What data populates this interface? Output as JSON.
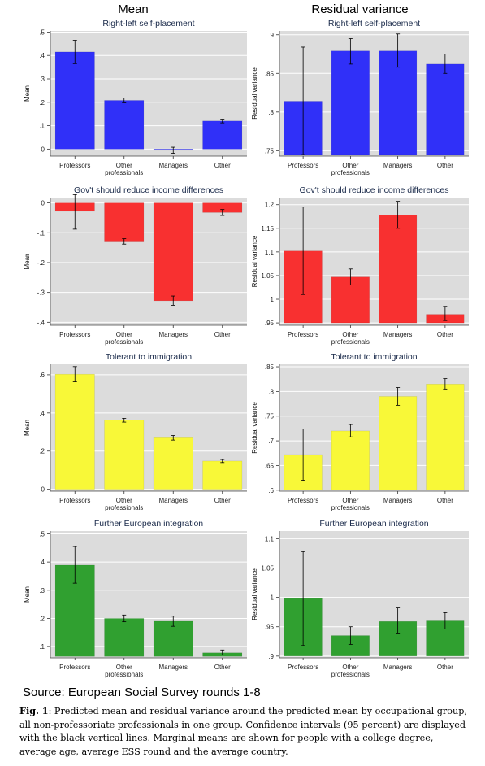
{
  "column_titles": [
    "Mean",
    "Residual variance"
  ],
  "source": "Source: European Social Survey rounds 1-8",
  "caption": {
    "label": "Fig. 1",
    "text": ": Predicted mean and residual variance around the predicted mean by occupational group, all non-professoriate professionals in one group. Confidence intervals (95 percent) are displayed with the black vertical lines. Marginal means are shown for people with a college degree, average age, average ESS round and the average country."
  },
  "colors": {
    "blue": "#3030f8",
    "red": "#f83030",
    "yellow": "#f8f838",
    "green": "#30a030",
    "panel_bg": "#dcdcdc",
    "grid": "#ffffff"
  },
  "chart_data": [
    {
      "type": "bar",
      "title": "Right-left self-placement",
      "ylabel": "Mean",
      "color": "blue",
      "categories": [
        "Professors",
        "Other professionals",
        "Managers",
        "Other"
      ],
      "values": [
        0.415,
        0.208,
        -0.005,
        0.12
      ],
      "ci": [
        [
          0.365,
          0.465
        ],
        [
          0.198,
          0.218
        ],
        [
          -0.018,
          0.008
        ],
        [
          0.112,
          0.128
        ]
      ],
      "ylim": [
        -0.03,
        0.505
      ],
      "ticks": [
        0,
        0.1,
        0.2,
        0.3,
        0.4,
        0.5
      ],
      "tick_labels": [
        "0",
        ".1",
        ".2",
        ".3",
        ".4",
        ".5"
      ]
    },
    {
      "type": "bar",
      "title": "Right-left self-placement",
      "ylabel": "Residual variance",
      "color": "blue",
      "categories": [
        "Professors",
        "Other professionals",
        "Managers",
        "Other"
      ],
      "values": [
        0.814,
        0.879,
        0.879,
        0.862
      ],
      "ci": [
        [
          0.745,
          0.884
        ],
        [
          0.862,
          0.895
        ],
        [
          0.858,
          0.901
        ],
        [
          0.85,
          0.875
        ]
      ],
      "ylim": [
        0.743,
        0.905
      ],
      "baseline": 0.745,
      "ticks": [
        0.75,
        0.8,
        0.85,
        0.9
      ],
      "tick_labels": [
        ".75",
        ".8",
        ".85",
        ".9"
      ]
    },
    {
      "type": "bar",
      "title": "Gov't should reduce income differences",
      "ylabel": "Mean",
      "color": "red",
      "categories": [
        "Professors",
        "Other professionals",
        "Managers",
        "Other"
      ],
      "values": [
        -0.028,
        -0.128,
        -0.328,
        -0.032
      ],
      "ci": [
        [
          -0.088,
          0.028
        ],
        [
          -0.138,
          -0.12
        ],
        [
          -0.343,
          -0.312
        ],
        [
          -0.042,
          -0.022
        ]
      ],
      "ylim": [
        -0.41,
        0.018
      ],
      "ticks": [
        0,
        -0.1,
        -0.2,
        -0.3,
        -0.4
      ],
      "tick_labels": [
        "0",
        "-.1",
        "-.2",
        "-.3",
        "-.4"
      ]
    },
    {
      "type": "bar",
      "title": "Gov't should reduce income differences",
      "ylabel": "Residual variance",
      "color": "red",
      "categories": [
        "Professors",
        "Other professionals",
        "Managers",
        "Other"
      ],
      "values": [
        1.102,
        1.047,
        1.178,
        0.968
      ],
      "ci": [
        [
          1.01,
          1.195
        ],
        [
          1.03,
          1.064
        ],
        [
          1.15,
          1.207
        ],
        [
          0.955,
          0.985
        ]
      ],
      "ylim": [
        0.945,
        1.215
      ],
      "baseline": 0.95,
      "ticks": [
        0.95,
        1.0,
        1.05,
        1.1,
        1.15,
        1.2
      ],
      "tick_labels": [
        ".95",
        "1",
        "1.05",
        "1.1",
        "1.15",
        "1.2"
      ]
    },
    {
      "type": "bar",
      "title": "Tolerant to immigration",
      "ylabel": "Mean",
      "color": "yellow",
      "categories": [
        "Professors",
        "Other professionals",
        "Managers",
        "Other"
      ],
      "values": [
        0.603,
        0.362,
        0.27,
        0.148
      ],
      "ci": [
        [
          0.563,
          0.643
        ],
        [
          0.352,
          0.372
        ],
        [
          0.258,
          0.282
        ],
        [
          0.14,
          0.156
        ]
      ],
      "ylim": [
        -0.01,
        0.655
      ],
      "ticks": [
        0,
        0.2,
        0.4,
        0.6
      ],
      "tick_labels": [
        "0",
        ".2",
        ".4",
        ".6"
      ]
    },
    {
      "type": "bar",
      "title": "Tolerant to immigration",
      "ylabel": "Residual variance",
      "color": "yellow",
      "categories": [
        "Professors",
        "Other professionals",
        "Managers",
        "Other"
      ],
      "values": [
        0.672,
        0.72,
        0.79,
        0.815
      ],
      "ci": [
        [
          0.62,
          0.724
        ],
        [
          0.708,
          0.733
        ],
        [
          0.772,
          0.808
        ],
        [
          0.805,
          0.826
        ]
      ],
      "ylim": [
        0.598,
        0.855
      ],
      "baseline": 0.6,
      "ticks": [
        0.6,
        0.65,
        0.7,
        0.75,
        0.8,
        0.85
      ],
      "tick_labels": [
        ".6",
        ".65",
        ".7",
        ".75",
        ".8",
        ".85"
      ]
    },
    {
      "type": "bar",
      "title": "Further European integration",
      "ylabel": "Mean",
      "color": "green",
      "categories": [
        "Professors",
        "Other professionals",
        "Managers",
        "Other"
      ],
      "values": [
        0.389,
        0.2,
        0.19,
        0.078
      ],
      "ci": [
        [
          0.325,
          0.455
        ],
        [
          0.188,
          0.212
        ],
        [
          0.172,
          0.208
        ],
        [
          0.07,
          0.088
        ]
      ],
      "ylim": [
        0.06,
        0.51
      ],
      "baseline": 0.065,
      "ticks": [
        0.1,
        0.2,
        0.3,
        0.4,
        0.5
      ],
      "tick_labels": [
        ".1",
        ".2",
        ".3",
        ".4",
        ".5"
      ]
    },
    {
      "type": "bar",
      "title": "Further European integration",
      "ylabel": "Residual variance",
      "color": "green",
      "categories": [
        "Professors",
        "Other professionals",
        "Managers",
        "Other"
      ],
      "values": [
        0.998,
        0.935,
        0.959,
        0.96
      ],
      "ci": [
        [
          0.918,
          1.078
        ],
        [
          0.92,
          0.95
        ],
        [
          0.938,
          0.982
        ],
        [
          0.946,
          0.974
        ]
      ],
      "ylim": [
        0.897,
        1.113
      ],
      "baseline": 0.9,
      "ticks": [
        0.9,
        0.95,
        1.0,
        1.05,
        1.1
      ],
      "tick_labels": [
        ".9",
        ".95",
        "1",
        "1.05",
        "1.1"
      ]
    }
  ]
}
